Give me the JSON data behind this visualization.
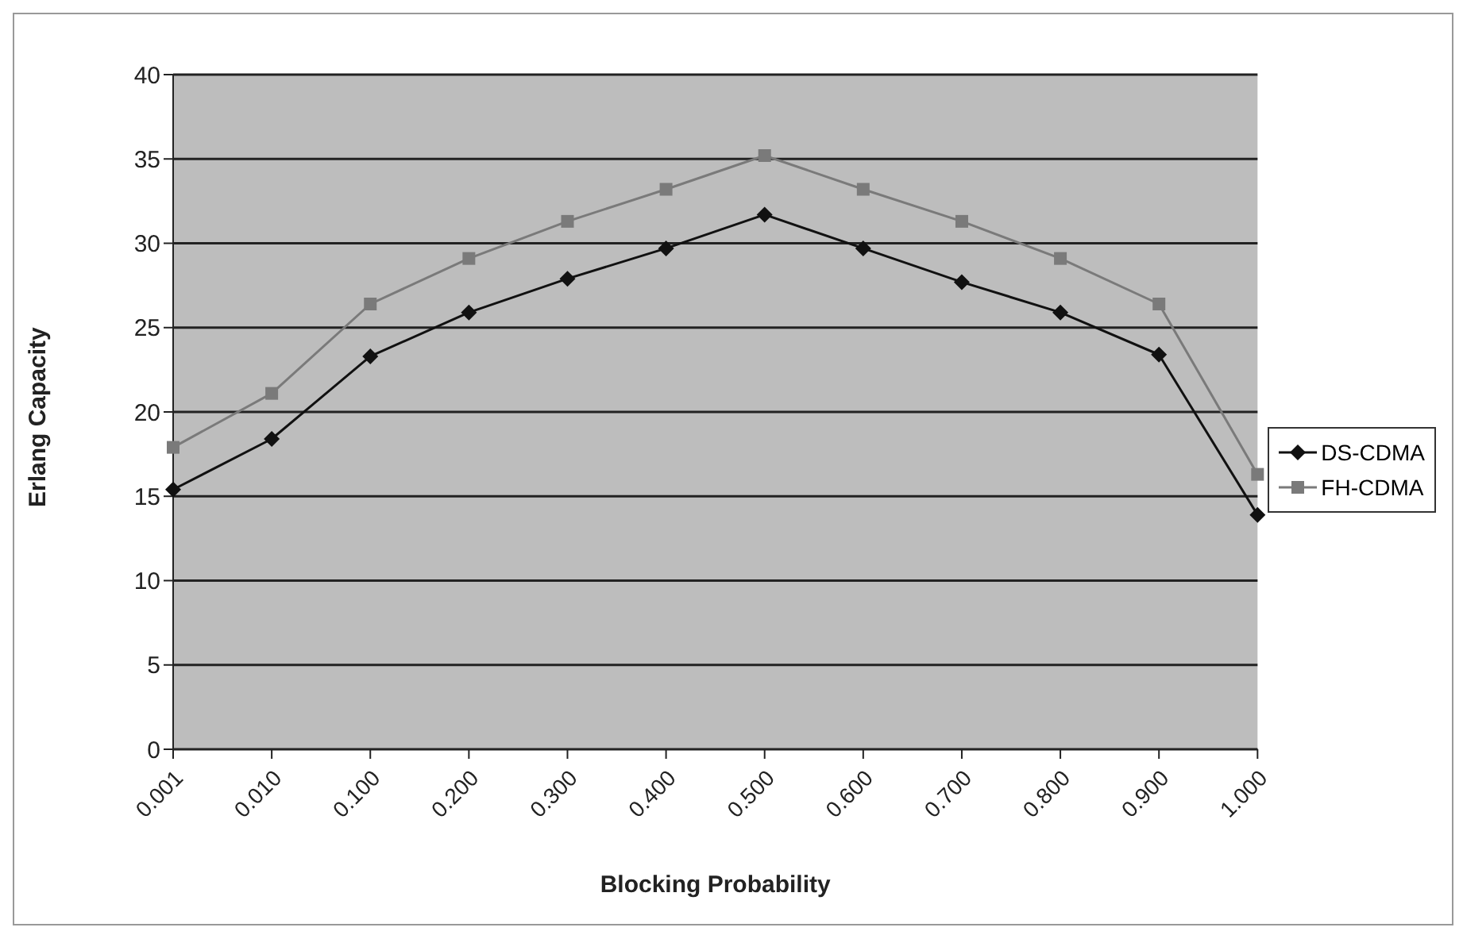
{
  "chart_data": {
    "type": "line",
    "xlabel": "Blocking Probability",
    "ylabel": "Erlang Capacity",
    "categories": [
      "0.001",
      "0.010",
      "0.100",
      "0.200",
      "0.300",
      "0.400",
      "0.500",
      "0.600",
      "0.700",
      "0.800",
      "0.900",
      "1.000"
    ],
    "series": [
      {
        "name": "DS-CDMA",
        "color": "#111111",
        "marker": "diamond",
        "values": [
          15.4,
          18.4,
          23.3,
          25.9,
          27.9,
          29.7,
          31.7,
          29.7,
          27.7,
          25.9,
          23.4,
          13.9
        ]
      },
      {
        "name": "FH-CDMA",
        "color": "#7a7a7a",
        "marker": "square",
        "values": [
          17.9,
          21.1,
          26.4,
          29.1,
          31.3,
          33.2,
          35.2,
          33.2,
          31.3,
          29.1,
          26.4,
          16.3
        ]
      }
    ],
    "ylim": [
      0,
      40
    ],
    "yticks": [
      0,
      5,
      10,
      15,
      20,
      25,
      30,
      35,
      40
    ],
    "grid": "y",
    "legend": "right"
  }
}
